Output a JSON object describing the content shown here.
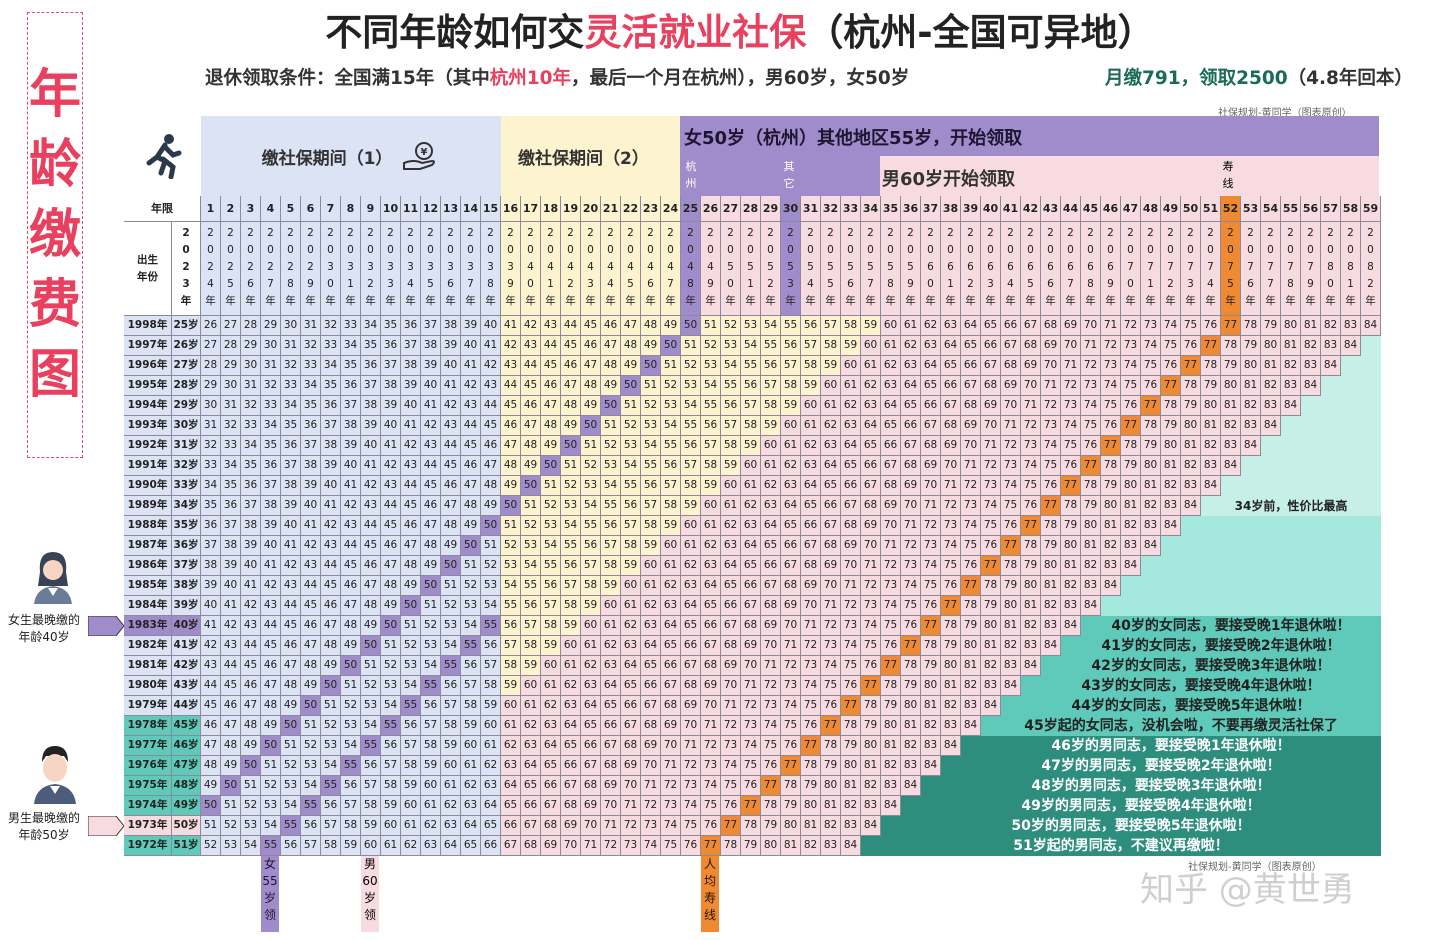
{
  "vertical_title": [
    "年",
    "龄",
    "缴",
    "费",
    "图"
  ],
  "title": {
    "pre": "不同年龄如何交",
    "highlight": "灵活就业社保",
    "post": "（杭州-全国可异地）"
  },
  "subtitle": {
    "pre": "退休领取条件：全国满15年（其中",
    "highlight": "杭州10年",
    "post": "，最后一个月在杭州），男60岁，女50岁"
  },
  "right_sub": {
    "main": "月缴791，领取2500",
    "tail": "（4.8年回本）"
  },
  "credit_top": "社保规划-黄同学（图表原创）",
  "credit_bottom": "社保规划-黄同学（图表原创）",
  "bands": {
    "pay1": "缴社保期间（1）",
    "pay2": "缴社保期间（2）",
    "female": "女50岁（杭州）其他地区55岁，开始领取",
    "hz": [
      "杭",
      "州"
    ],
    "other": [
      "其",
      "它"
    ],
    "male": "男60岁开始领取",
    "life": [
      "寿",
      "线"
    ]
  },
  "grid": {
    "col_header": "年限",
    "row_header": [
      "出生",
      "年份"
    ],
    "base_year_chars": [
      "2",
      "0",
      "2",
      "3",
      "年"
    ],
    "first_birth_year": 1998,
    "last_row_label": "1972年",
    "age_suffix": "岁",
    "years_suffix": "年",
    "life_age": 77,
    "max_age": 84
  },
  "messages": [
    "34岁前，性价比最高",
    "40岁的女同志，要接受晚1年退休啦！",
    "41岁的女同志，要接受晚2年退休啦！",
    "42岁的女同志，要接受晚3年退休啦！",
    "43岁的女同志，要接受晚4年退休啦！",
    "44岁的女同志，要接受晚5年退休啦！",
    "45岁起的女同志，没机会啦，不要再缴灵活社保了",
    "46岁的男同志，要接受晚1年退休啦！",
    "47岁的男同志，要接受晚2年退休啦！",
    "48岁的男同志，要接受晚3年退休啦！",
    "49岁的男同志，要接受晚4年退休啦！",
    "50岁的男同志，要接受晚5年退休啦！",
    "51岁起的男同志，不建议再缴啦！"
  ],
  "side": {
    "female": [
      "女生最晚缴的",
      "年龄40岁"
    ],
    "male": [
      "男生最晚缴的",
      "年龄50岁"
    ]
  },
  "bottom_labels": {
    "female55": [
      "女",
      "55",
      "岁",
      "领"
    ],
    "male60": [
      "男",
      "60",
      "岁",
      "领"
    ],
    "life": [
      "人",
      "均",
      "寿",
      "线"
    ]
  },
  "watermark": "知乎 @黄世勇",
  "colors": {
    "blue": "#dbe3f4",
    "yellow": "#fdf4cf",
    "pink": "#f8dbe0",
    "purple": "#a08ccb",
    "orange": "#ef8a33",
    "mint": "#c6efe8",
    "teal": "#5fcab9",
    "darkteal": "#2e8e7e",
    "title_red": "#e8405e"
  }
}
